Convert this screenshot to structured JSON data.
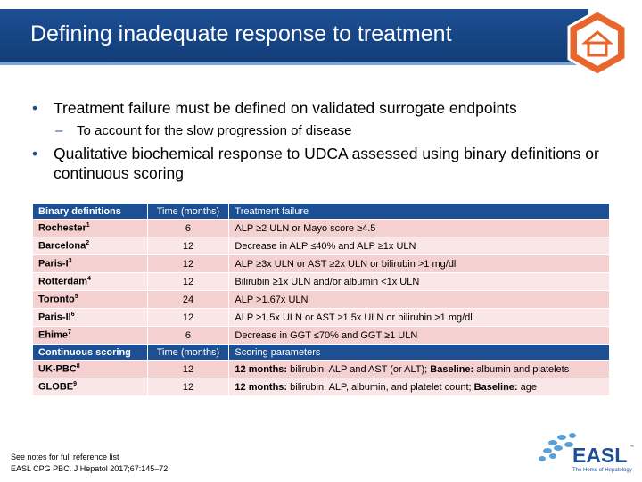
{
  "header": {
    "title": "Defining inadequate response to treatment"
  },
  "bullets": [
    {
      "level": 1,
      "text": "Treatment failure must be defined on validated surrogate endpoints"
    },
    {
      "level": 2,
      "text": "To account for the slow progression of disease"
    },
    {
      "level": 1,
      "text": "Qualitative biochemical response to UDCA assessed using binary definitions or continuous scoring"
    }
  ],
  "table": {
    "sections": [
      {
        "headers": [
          "Binary definitions",
          "Time (months)",
          "Treatment failure"
        ],
        "rows": [
          {
            "name": "Rochester",
            "ref": "1",
            "time": 6,
            "criteria": [
              {
                "text": "ALP ≥2 ULN or Mayo score ≥4.5"
              }
            ]
          },
          {
            "name": "Barcelona",
            "ref": "2",
            "time": 12,
            "criteria": [
              {
                "text": "Decrease in ALP ≤40% and ALP ≥1x ULN"
              }
            ]
          },
          {
            "name": "Paris-I",
            "ref": "3",
            "time": 12,
            "criteria": [
              {
                "text": "ALP ≥3x ULN or AST ≥2x ULN or bilirubin >1 mg/dl"
              }
            ]
          },
          {
            "name": "Rotterdam",
            "ref": "4",
            "time": 12,
            "criteria": [
              {
                "text": "Bilirubin ≥1x ULN and/or albumin <1x ULN"
              }
            ]
          },
          {
            "name": "Toronto",
            "ref": "5",
            "time": 24,
            "criteria": [
              {
                "text": "ALP >1.67x ULN"
              }
            ]
          },
          {
            "name": "Paris-II",
            "ref": "6",
            "time": 12,
            "criteria": [
              {
                "text": "ALP ≥1.5x ULN or AST ≥1.5x ULN or bilirubin >1 mg/dl"
              }
            ]
          },
          {
            "name": "Ehime",
            "ref": "7",
            "time": 6,
            "criteria": [
              {
                "text": "Decrease in GGT ≤70% and GGT ≥1 ULN"
              }
            ]
          }
        ]
      },
      {
        "headers": [
          "Continuous scoring",
          "Time (months)",
          "Scoring parameters"
        ],
        "rows": [
          {
            "name": "UK-PBC",
            "ref": "8",
            "time": 12,
            "criteria": [
              {
                "text": "12 months:",
                "bold": true
              },
              {
                "text": " bilirubin, ALP and AST (or ALT); "
              },
              {
                "text": "Baseline:",
                "bold": true
              },
              {
                "text": " albumin and platelets"
              }
            ]
          },
          {
            "name": "GLOBE",
            "ref": "9",
            "time": 12,
            "criteria": [
              {
                "text": "12 months:",
                "bold": true
              },
              {
                "text": " bilirubin, ALP, albumin, and platelet count; "
              },
              {
                "text": "Baseline:",
                "bold": true
              },
              {
                "text": " age"
              }
            ]
          }
        ]
      }
    ]
  },
  "footer": {
    "notes": [
      "See notes for full reference list",
      "EASL CPG PBC. J Hepatol 2017;67:145–72"
    ]
  },
  "logo": {
    "name": "EASL",
    "tm": "™",
    "tagline": "The Home of Hepatology"
  }
}
